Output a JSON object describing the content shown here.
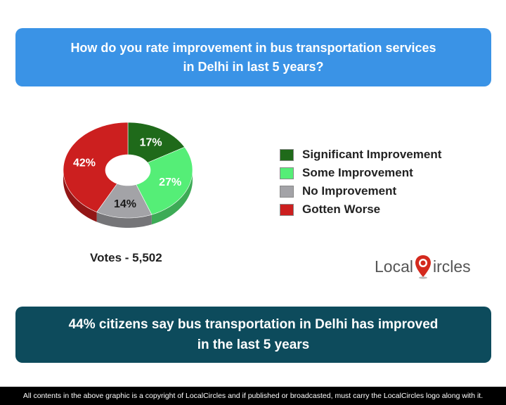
{
  "question": {
    "line1": "How do you rate improvement in bus transportation services",
    "line2": "in Delhi in last 5 years?"
  },
  "chart_data": {
    "type": "pie",
    "donut": true,
    "categories": [
      "Significant Improvement",
      "Some Improvement",
      "No Improvement",
      "Gotten Worse"
    ],
    "values": [
      17,
      27,
      14,
      42
    ],
    "labels": [
      "17%",
      "27%",
      "14%",
      "42%"
    ],
    "colors": [
      "#1f6a1a",
      "#55ee77",
      "#a3a3a7",
      "#cc1f1f"
    ],
    "legend_position": "right"
  },
  "votes": "Votes - 5,502",
  "finding": {
    "line1": "44% citizens say bus transportation in Delhi has improved",
    "line2": "in the last 5 years"
  },
  "logo": {
    "part1": "Local",
    "part2": "ircles",
    "pin_color": "#d42a1e"
  },
  "footer": "All contents in the above graphic is a copyright of LocalCircles and if published or broadcasted, must carry the LocalCircles logo along with it."
}
